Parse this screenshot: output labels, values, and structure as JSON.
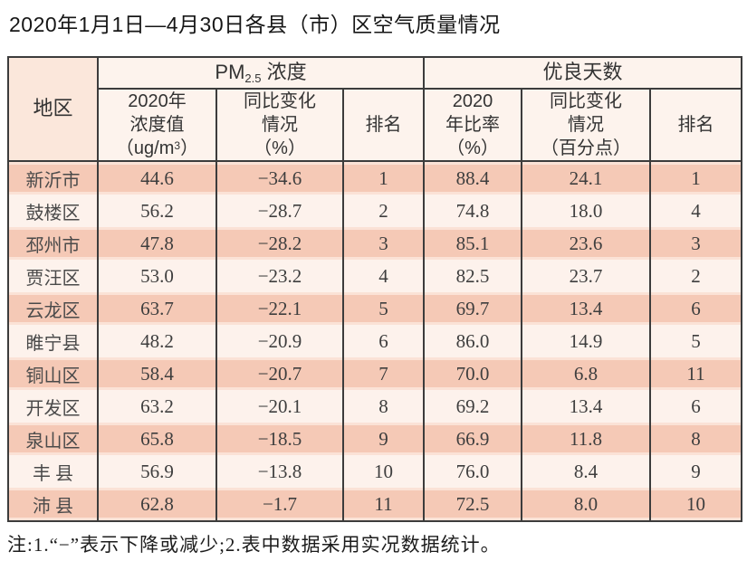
{
  "page": {
    "title": "2020年1月1日—4月30日各县（市）区空气质量情况",
    "note": "注:1.“−”表示下降或减少;2.表中数据采用实况数据统计。"
  },
  "table": {
    "region_header": "地区",
    "groups": {
      "pm": {
        "prefix": "PM",
        "sub": "2.5",
        "suffix": " 浓度"
      },
      "good_days": {
        "label": "优良天数"
      }
    },
    "subheaders": {
      "pm_value": {
        "line1": "2020年",
        "line2": "浓度值",
        "unit_pre": "（ug/m",
        "unit_sup": "3",
        "unit_post": "）"
      },
      "pm_change": "同比变化\n情况\n（%）",
      "pm_rank": "排名",
      "good_ratio": "2020\n年比率\n（%）",
      "good_change": "同比变化\n情况\n（百分点）",
      "good_rank": "排名"
    },
    "rows": [
      {
        "region": "新沂市",
        "values": [
          "44.6",
          "−34.6",
          "1",
          "88.4",
          "24.1",
          "1"
        ],
        "shaded": true
      },
      {
        "region": "鼓楼区",
        "values": [
          "56.2",
          "−28.7",
          "2",
          "74.8",
          "18.0",
          "4"
        ],
        "shaded": false
      },
      {
        "region": "邳州市",
        "values": [
          "47.8",
          "−28.2",
          "3",
          "85.1",
          "23.6",
          "3"
        ],
        "shaded": true
      },
      {
        "region": "贾汪区",
        "values": [
          "53.0",
          "−23.2",
          "4",
          "82.5",
          "23.7",
          "2"
        ],
        "shaded": false
      },
      {
        "region": "云龙区",
        "values": [
          "63.7",
          "−22.1",
          "5",
          "69.7",
          "13.4",
          "6"
        ],
        "shaded": true
      },
      {
        "region": "睢宁县",
        "values": [
          "48.2",
          "−20.9",
          "6",
          "86.0",
          "14.9",
          "5"
        ],
        "shaded": false
      },
      {
        "region": "铜山区",
        "values": [
          "58.4",
          "−20.7",
          "7",
          "70.0",
          "6.8",
          "11"
        ],
        "shaded": true
      },
      {
        "region": "开发区",
        "values": [
          "63.2",
          "−20.1",
          "8",
          "69.2",
          "13.4",
          "6"
        ],
        "shaded": false
      },
      {
        "region": "泉山区",
        "values": [
          "65.8",
          "−18.5",
          "9",
          "66.9",
          "11.8",
          "8"
        ],
        "shaded": true
      },
      {
        "region": "丰 县",
        "values": [
          "56.9",
          "−13.8",
          "10",
          "76.0",
          "8.4",
          "9"
        ],
        "shaded": false
      },
      {
        "region": "沛 县",
        "values": [
          "62.8",
          "−1.7",
          "11",
          "72.5",
          "8.0",
          "10"
        ],
        "shaded": true
      }
    ]
  },
  "colors": {
    "border": "#3c3c3c",
    "row_shaded": "#f5c9b6",
    "row_shaded_edge": "#fbe2d6",
    "row_light": "#fdf2ec",
    "header_bg": "#fdf3ed",
    "region_header_bg": "#fbe7db"
  }
}
